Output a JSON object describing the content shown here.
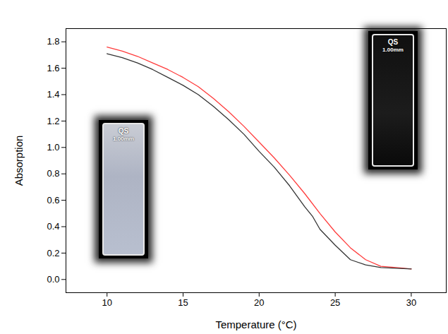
{
  "chart_data": {
    "type": "line",
    "xlabel": "Temperature (°C)",
    "ylabel": "Absorption",
    "xlim": [
      7.3,
      32.3
    ],
    "xticks": [
      10,
      15,
      20,
      25,
      30
    ],
    "ylim": [
      -0.1,
      1.9
    ],
    "yticks": [
      {
        "value": 0,
        "label": "0.0"
      },
      0.2,
      0.4,
      0.6,
      0.8,
      {
        "value": 1,
        "label": "1.0"
      },
      1.2,
      1.4,
      1.6,
      1.8
    ],
    "grid": false,
    "series": [
      {
        "color": "#ff3b3b",
        "x": [
          10,
          11,
          12,
          13,
          14,
          15,
          16,
          17,
          18,
          19,
          20,
          21,
          22,
          23,
          24,
          25,
          26,
          27,
          28,
          29,
          30
        ],
        "values": [
          1.76,
          1.73,
          1.69,
          1.64,
          1.59,
          1.53,
          1.46,
          1.37,
          1.27,
          1.16,
          1.04,
          0.92,
          0.79,
          0.65,
          0.5,
          0.36,
          0.24,
          0.15,
          0.1,
          0.09,
          0.08
        ]
      },
      {
        "color": "#333333",
        "x": [
          10,
          11,
          12,
          13,
          14,
          15,
          16,
          17,
          18,
          19,
          20,
          21,
          22,
          23,
          23.5,
          24,
          24.5,
          25,
          26,
          27,
          28,
          29,
          30
        ],
        "values": [
          1.71,
          1.68,
          1.64,
          1.59,
          1.53,
          1.47,
          1.4,
          1.31,
          1.21,
          1.1,
          0.97,
          0.85,
          0.71,
          0.55,
          0.48,
          0.38,
          0.32,
          0.26,
          0.15,
          0.11,
          0.09,
          0.085,
          0.08
        ]
      }
    ],
    "insets": [
      {
        "texts": [
          "QS",
          "1.00mm"
        ]
      },
      {
        "texts": [
          "QS",
          "1.00mm"
        ]
      }
    ]
  }
}
